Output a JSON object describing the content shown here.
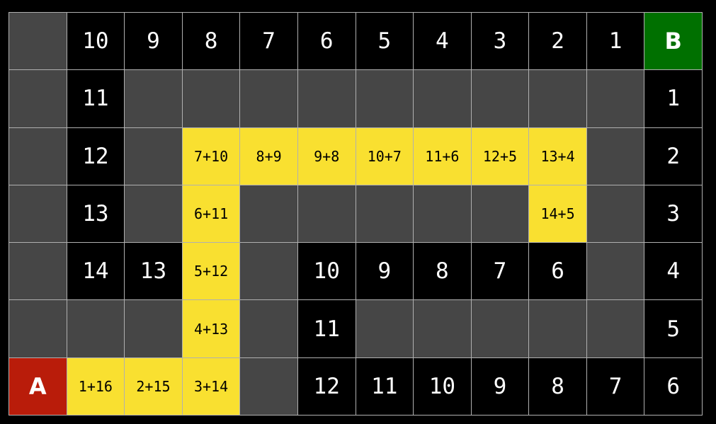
{
  "colors": {
    "wall": "#464646",
    "distance": "#000000",
    "path": "#f9e030",
    "start": "#b91c0a",
    "goal": "#007000"
  },
  "grid": [
    [
      [
        "wall",
        ""
      ],
      [
        "dist",
        "10"
      ],
      [
        "dist",
        "9"
      ],
      [
        "dist",
        "8"
      ],
      [
        "dist",
        "7"
      ],
      [
        "dist",
        "6"
      ],
      [
        "dist",
        "5"
      ],
      [
        "dist",
        "4"
      ],
      [
        "dist",
        "3"
      ],
      [
        "dist",
        "2"
      ],
      [
        "dist",
        "1"
      ],
      [
        "goal",
        "B"
      ]
    ],
    [
      [
        "wall",
        ""
      ],
      [
        "dist",
        "11"
      ],
      [
        "wall",
        ""
      ],
      [
        "wall",
        ""
      ],
      [
        "wall",
        ""
      ],
      [
        "wall",
        ""
      ],
      [
        "wall",
        ""
      ],
      [
        "wall",
        ""
      ],
      [
        "wall",
        ""
      ],
      [
        "wall",
        ""
      ],
      [
        "wall",
        ""
      ],
      [
        "dist",
        "1"
      ]
    ],
    [
      [
        "wall",
        ""
      ],
      [
        "dist",
        "12"
      ],
      [
        "wall",
        ""
      ],
      [
        "path",
        "7+10"
      ],
      [
        "path",
        "8+9"
      ],
      [
        "path",
        "9+8"
      ],
      [
        "path",
        "10+7"
      ],
      [
        "path",
        "11+6"
      ],
      [
        "path",
        "12+5"
      ],
      [
        "path",
        "13+4"
      ],
      [
        "wall",
        ""
      ],
      [
        "dist",
        "2"
      ]
    ],
    [
      [
        "wall",
        ""
      ],
      [
        "dist",
        "13"
      ],
      [
        "wall",
        ""
      ],
      [
        "path",
        "6+11"
      ],
      [
        "wall",
        ""
      ],
      [
        "wall",
        ""
      ],
      [
        "wall",
        ""
      ],
      [
        "wall",
        ""
      ],
      [
        "wall",
        ""
      ],
      [
        "path",
        "14+5"
      ],
      [
        "wall",
        ""
      ],
      [
        "dist",
        "3"
      ]
    ],
    [
      [
        "wall",
        ""
      ],
      [
        "dist",
        "14"
      ],
      [
        "dist",
        "13"
      ],
      [
        "path",
        "5+12"
      ],
      [
        "wall",
        ""
      ],
      [
        "dist",
        "10"
      ],
      [
        "dist",
        "9"
      ],
      [
        "dist",
        "8"
      ],
      [
        "dist",
        "7"
      ],
      [
        "dist",
        "6"
      ],
      [
        "wall",
        ""
      ],
      [
        "dist",
        "4"
      ]
    ],
    [
      [
        "wall",
        ""
      ],
      [
        "wall",
        ""
      ],
      [
        "wall",
        ""
      ],
      [
        "path",
        "4+13"
      ],
      [
        "wall",
        ""
      ],
      [
        "dist",
        "11"
      ],
      [
        "wall",
        ""
      ],
      [
        "wall",
        ""
      ],
      [
        "wall",
        ""
      ],
      [
        "wall",
        ""
      ],
      [
        "wall",
        ""
      ],
      [
        "dist",
        "5"
      ]
    ],
    [
      [
        "start",
        "A"
      ],
      [
        "path",
        "1+16"
      ],
      [
        "path",
        "2+15"
      ],
      [
        "path",
        "3+14"
      ],
      [
        "wall",
        ""
      ],
      [
        "dist",
        "12"
      ],
      [
        "dist",
        "11"
      ],
      [
        "dist",
        "10"
      ],
      [
        "dist",
        "9"
      ],
      [
        "dist",
        "8"
      ],
      [
        "dist",
        "7"
      ],
      [
        "dist",
        "6"
      ]
    ]
  ]
}
